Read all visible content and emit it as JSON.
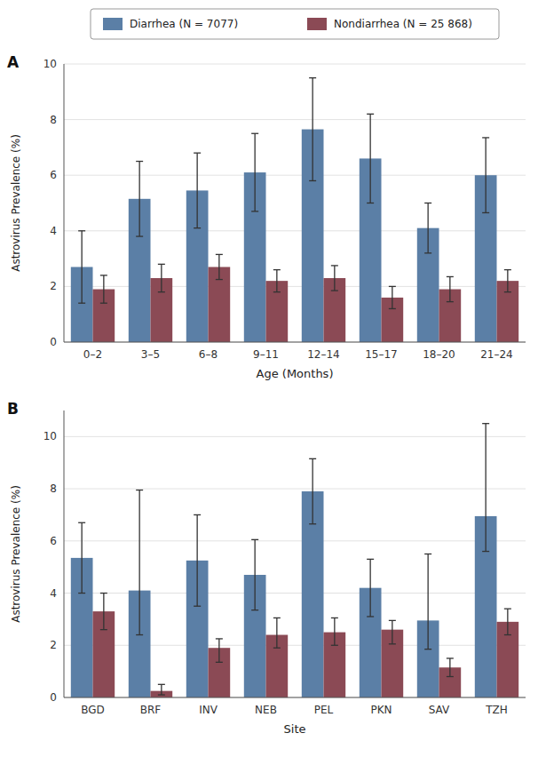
{
  "chart_data": [
    {
      "type": "bar",
      "title": "A",
      "legend": "top",
      "grid": true,
      "xlabel": "Age (Months)",
      "ylabel": "Astrovirus Prevalence (%)",
      "categories": [
        "0–2",
        "3–5",
        "6–8",
        "9–11",
        "12–14",
        "15–17",
        "18–20",
        "21–24"
      ],
      "ylim": [
        0,
        10
      ],
      "yticks": [
        0,
        2,
        4,
        6,
        8,
        10
      ],
      "series": [
        {
          "name": "Diarrhea (N = 7077)",
          "color": "#5b7fa6",
          "values": [
            2.7,
            5.15,
            5.45,
            6.1,
            7.65,
            6.6,
            4.1,
            6.0
          ],
          "err_lo": [
            1.3,
            1.35,
            1.35,
            1.4,
            1.85,
            1.6,
            0.9,
            1.35
          ],
          "err_hi": [
            1.3,
            1.35,
            1.35,
            1.4,
            1.85,
            1.6,
            0.9,
            1.35
          ]
        },
        {
          "name": "Nondiarrhea (N = 25 868)",
          "color": "#8b4a55",
          "values": [
            1.9,
            2.3,
            2.7,
            2.2,
            2.3,
            1.6,
            1.9,
            2.2
          ],
          "err_lo": [
            0.5,
            0.5,
            0.45,
            0.4,
            0.45,
            0.4,
            0.45,
            0.4
          ],
          "err_hi": [
            0.5,
            0.5,
            0.45,
            0.4,
            0.45,
            0.4,
            0.45,
            0.4
          ]
        }
      ]
    },
    {
      "type": "bar",
      "title": "B",
      "grid": true,
      "xlabel": "Site",
      "ylabel": "Astrovirus Prevalence (%)",
      "categories": [
        "BGD",
        "BRF",
        "INV",
        "NEB",
        "PEL",
        "PKN",
        "SAV",
        "TZH"
      ],
      "ylim": [
        0,
        11
      ],
      "yticks": [
        0,
        2,
        4,
        6,
        8,
        10
      ],
      "series": [
        {
          "color": "#5b7fa6",
          "values": [
            5.35,
            4.1,
            5.25,
            4.7,
            7.9,
            4.2,
            2.95,
            6.95
          ],
          "err_lo": [
            1.35,
            1.7,
            1.75,
            1.35,
            1.25,
            1.1,
            1.1,
            1.35
          ],
          "err_hi": [
            1.35,
            3.85,
            1.75,
            1.35,
            1.25,
            1.1,
            2.55,
            3.55
          ]
        },
        {
          "color": "#8b4a55",
          "values": [
            3.3,
            0.25,
            1.9,
            2.4,
            2.5,
            2.6,
            1.15,
            2.9
          ],
          "err_lo": [
            0.7,
            0.15,
            0.55,
            0.5,
            0.5,
            0.55,
            0.35,
            0.5
          ],
          "err_hi": [
            0.7,
            0.25,
            0.35,
            0.65,
            0.55,
            0.35,
            0.35,
            0.5
          ]
        }
      ]
    }
  ]
}
